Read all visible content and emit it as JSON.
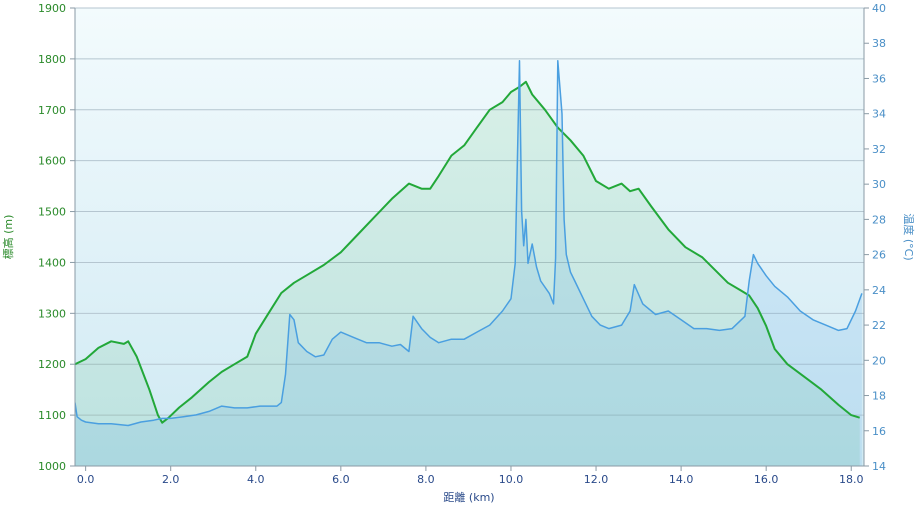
{
  "colors": {
    "elevation": "#22a839",
    "temperature": "#4a9fe0",
    "elevation_axis_text": "#2a8a2a",
    "temperature_axis_text": "#4a8fc7",
    "x_axis_text": "#2a4a8a",
    "grid": "#b5c6d0",
    "bg_top": "#f3fbfd",
    "bg_bottom": "#cfe9f3"
  },
  "chart_data": {
    "type": "line",
    "xlabel": "距離 (km)",
    "xlim": [
      -0.25,
      18.3
    ],
    "x_ticks": [
      "0.0",
      "2.0",
      "4.0",
      "6.0",
      "8.0",
      "10.0",
      "12.0",
      "14.0",
      "16.0",
      "18.0"
    ],
    "y_left": {
      "label": "標高 (m)",
      "lim": [
        1000,
        1900
      ],
      "ticks": [
        "1000",
        "1100",
        "1200",
        "1300",
        "1400",
        "1500",
        "1600",
        "1700",
        "1800",
        "1900"
      ]
    },
    "y_right": {
      "label": "温度 (°C)",
      "lim": [
        14,
        40
      ],
      "ticks": [
        "14",
        "16",
        "18",
        "20",
        "22",
        "24",
        "26",
        "28",
        "30",
        "32",
        "34",
        "36",
        "38",
        "40"
      ]
    },
    "grid": true,
    "series": [
      {
        "name": "標高",
        "axis": "left",
        "x": [
          -0.25,
          0.0,
          0.3,
          0.6,
          0.9,
          1.0,
          1.2,
          1.5,
          1.7,
          1.8,
          1.95,
          2.2,
          2.5,
          2.9,
          3.2,
          3.5,
          3.8,
          4.0,
          4.3,
          4.6,
          4.9,
          5.2,
          5.6,
          6.0,
          6.4,
          6.8,
          7.2,
          7.6,
          7.9,
          8.1,
          8.3,
          8.6,
          8.9,
          9.2,
          9.5,
          9.8,
          10.0,
          10.2,
          10.35,
          10.5,
          10.8,
          11.1,
          11.4,
          11.7,
          12.0,
          12.3,
          12.6,
          12.8,
          13.0,
          13.3,
          13.7,
          14.1,
          14.5,
          14.8,
          15.1,
          15.4,
          15.6,
          15.8,
          16.0,
          16.2,
          16.5,
          16.9,
          17.3,
          17.7,
          18.0,
          18.2
        ],
        "values": [
          1200,
          1210,
          1232,
          1245,
          1240,
          1245,
          1215,
          1150,
          1100,
          1085,
          1095,
          1115,
          1135,
          1165,
          1185,
          1200,
          1215,
          1260,
          1300,
          1340,
          1360,
          1375,
          1395,
          1420,
          1455,
          1490,
          1525,
          1555,
          1545,
          1545,
          1570,
          1610,
          1630,
          1665,
          1700,
          1715,
          1735,
          1745,
          1755,
          1730,
          1700,
          1665,
          1640,
          1610,
          1560,
          1545,
          1555,
          1540,
          1545,
          1510,
          1465,
          1430,
          1410,
          1385,
          1360,
          1345,
          1335,
          1310,
          1275,
          1230,
          1200,
          1175,
          1150,
          1120,
          1100,
          1095
        ]
      },
      {
        "name": "温度",
        "axis": "right",
        "x": [
          -0.25,
          -0.2,
          -0.1,
          0.0,
          0.3,
          0.6,
          1.0,
          1.3,
          1.6,
          1.8,
          2.0,
          2.3,
          2.6,
          2.9,
          3.2,
          3.5,
          3.8,
          4.1,
          4.3,
          4.5,
          4.6,
          4.7,
          4.8,
          4.9,
          5.0,
          5.2,
          5.4,
          5.6,
          5.8,
          6.0,
          6.3,
          6.6,
          6.9,
          7.2,
          7.4,
          7.6,
          7.7,
          7.9,
          8.1,
          8.3,
          8.6,
          8.9,
          9.2,
          9.5,
          9.8,
          10.0,
          10.1,
          10.2,
          10.25,
          10.3,
          10.35,
          10.4,
          10.5,
          10.6,
          10.7,
          10.9,
          11.0,
          11.05,
          11.1,
          11.2,
          11.25,
          11.3,
          11.4,
          11.5,
          11.7,
          11.9,
          12.1,
          12.3,
          12.6,
          12.8,
          12.9,
          13.1,
          13.4,
          13.7,
          14.0,
          14.3,
          14.6,
          14.9,
          15.2,
          15.5,
          15.6,
          15.7,
          15.8,
          16.0,
          16.2,
          16.5,
          16.8,
          17.1,
          17.4,
          17.7,
          17.9,
          18.1,
          18.25
        ],
        "values": [
          17.6,
          16.8,
          16.6,
          16.5,
          16.4,
          16.4,
          16.3,
          16.5,
          16.6,
          16.7,
          16.7,
          16.8,
          16.9,
          17.1,
          17.4,
          17.3,
          17.3,
          17.4,
          17.4,
          17.4,
          17.6,
          19.2,
          22.6,
          22.3,
          21.0,
          20.5,
          20.2,
          20.3,
          21.2,
          21.6,
          21.3,
          21.0,
          21.0,
          20.8,
          20.9,
          20.5,
          22.5,
          21.8,
          21.3,
          21.0,
          21.2,
          21.2,
          21.6,
          22.0,
          22.8,
          23.5,
          25.5,
          37.0,
          28.5,
          26.5,
          28.0,
          25.5,
          26.6,
          25.3,
          24.5,
          23.8,
          23.2,
          25.8,
          37.0,
          34.0,
          28.0,
          26.0,
          25.0,
          24.5,
          23.5,
          22.5,
          22.0,
          21.8,
          22.0,
          22.8,
          24.3,
          23.2,
          22.6,
          22.8,
          22.3,
          21.8,
          21.8,
          21.7,
          21.8,
          22.5,
          24.5,
          26.0,
          25.5,
          24.8,
          24.2,
          23.6,
          22.8,
          22.3,
          22.0,
          21.7,
          21.8,
          22.8,
          23.8
        ]
      }
    ]
  }
}
